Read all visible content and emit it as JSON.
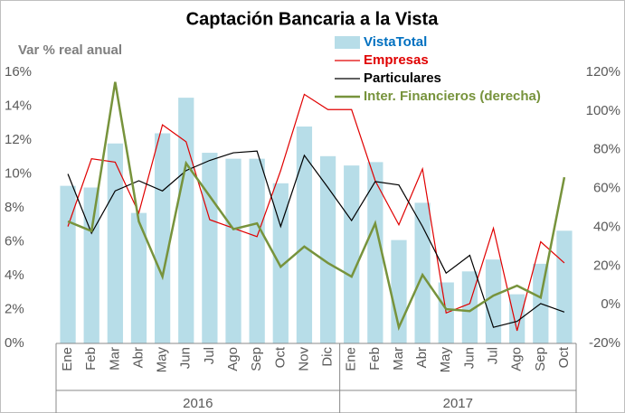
{
  "chart_data": {
    "type": "bar_line",
    "title": "Captación Bancaria a la Vista",
    "y_axis_label": "Var % real anual",
    "categories": [
      "Ene",
      "Feb",
      "Mar",
      "Abr",
      "May",
      "Jun",
      "Jul",
      "Ago",
      "Sep",
      "Oct",
      "Nov",
      "Dic",
      "Ene",
      "Feb",
      "Mar",
      "Abr",
      "May",
      "Jun",
      "Jul",
      "Ago",
      "Sep",
      "Oct"
    ],
    "years": [
      "2016",
      "2017"
    ],
    "series": [
      {
        "name": "VistaTotal",
        "type": "bar",
        "color": "#b7dde8",
        "label_color": "#0070c0",
        "values": [
          9.3,
          9.2,
          11.8,
          7.7,
          12.4,
          14.5,
          11.25,
          10.9,
          10.9,
          9.45,
          12.8,
          11.05,
          10.5,
          10.7,
          6.1,
          8.3,
          3.6,
          4.25,
          4.95,
          2.9,
          4.7,
          6.65
        ]
      },
      {
        "name": "Empresas",
        "type": "line",
        "color": "#e00000",
        "label_color": "#e00000",
        "values": [
          6.9,
          10.9,
          10.7,
          7.7,
          12.9,
          11.9,
          7.3,
          6.8,
          6.3,
          10.2,
          14.7,
          13.8,
          13.8,
          9.6,
          7.0,
          10.3,
          1.8,
          2.35,
          6.8,
          0.75,
          6.0,
          4.75
        ]
      },
      {
        "name": "Particulares",
        "type": "line",
        "color": "#000000",
        "label_color": "#000000",
        "values": [
          10.0,
          6.5,
          9.0,
          9.6,
          9.0,
          10.2,
          10.8,
          11.25,
          11.35,
          6.9,
          11.1,
          9.2,
          7.25,
          9.55,
          9.35,
          6.9,
          4.15,
          5.2,
          0.95,
          1.3,
          2.35,
          1.85
        ]
      },
      {
        "name": "Inter. Financieros (derecha)",
        "type": "line",
        "axis": "y2",
        "color": "#77933c",
        "label_color": "#77933c",
        "values": [
          43,
          38,
          115,
          43,
          14.5,
          73,
          56,
          39,
          42,
          19.6,
          30,
          21.5,
          14.5,
          42,
          -11.7,
          15.4,
          -2.3,
          -3.3,
          4.7,
          9.8,
          3.7,
          65.8
        ]
      }
    ],
    "ylim": [
      0,
      16
    ],
    "yticks": [
      {
        "value": 0,
        "label": "0%"
      },
      {
        "value": 2,
        "label": "2%"
      },
      {
        "value": 4,
        "label": "4%"
      },
      {
        "value": 6,
        "label": "6%"
      },
      {
        "value": 8,
        "label": "8%"
      },
      {
        "value": 10,
        "label": "10%"
      },
      {
        "value": 12,
        "label": "12%"
      },
      {
        "value": 14,
        "label": "14%"
      },
      {
        "value": 16,
        "label": "16%"
      }
    ],
    "y2lim": [
      -20,
      120
    ],
    "y2ticks": [
      {
        "value": -20,
        "label": "-20%"
      },
      {
        "value": 0,
        "label": "0%"
      },
      {
        "value": 20,
        "label": "20%"
      },
      {
        "value": 40,
        "label": "40%"
      },
      {
        "value": 60,
        "label": "60%"
      },
      {
        "value": 80,
        "label": "80%"
      },
      {
        "value": 100,
        "label": "100%"
      },
      {
        "value": 120,
        "label": "120%"
      }
    ],
    "grid": false
  }
}
